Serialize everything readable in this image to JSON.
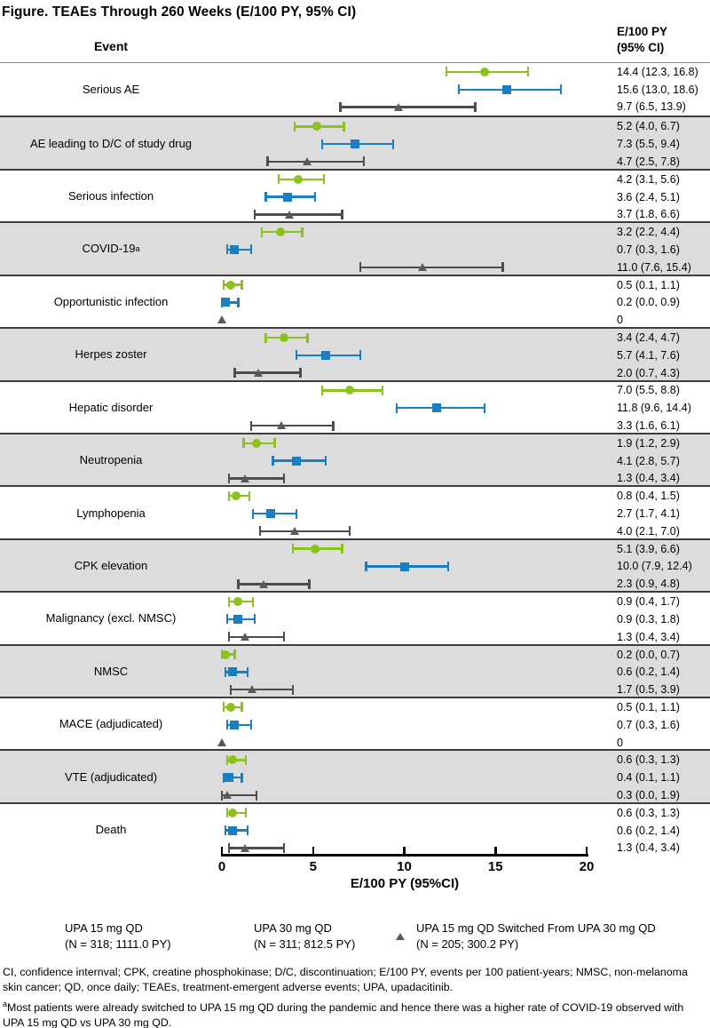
{
  "title": "Figure. TEAEs Through 260 Weeks (E/100 PY, 95% CI)",
  "header": {
    "event_col": "Event",
    "value_col_line1": "E/100 PY",
    "value_col_line2": "(95% CI)"
  },
  "colors": {
    "upa15_green": "#8CC21D",
    "upa30_blue": "#1A7FC1",
    "switched_gray_marker": "#58595B",
    "switched_gray_bar": "#4D4D4D",
    "shaded_row_bg": "#DCDCDC",
    "row_separator": "#3D3D3D",
    "axis_black": "#000000"
  },
  "chart_data": {
    "type": "forest",
    "x_axis": {
      "label": "E/100 PY (95%CI)",
      "min": 0,
      "max": 20,
      "ticks": [
        0,
        5,
        10,
        15,
        20
      ]
    },
    "series": [
      {
        "name": "UPA 15 mg QD",
        "n_label": "(N = 318; 1111.0 PY)",
        "marker": "circle",
        "color": "#8CC21D"
      },
      {
        "name": "UPA 30 mg QD",
        "n_label": "(N = 311; 812.5 PY)",
        "marker": "square",
        "color": "#1A7FC1"
      },
      {
        "name": "UPA 15 mg QD Switched From UPA 30 mg QD",
        "n_label": "(N = 205; 300.2 PY)",
        "marker": "triangle",
        "color": "#58595B"
      }
    ],
    "rows": [
      {
        "event": "Serious AE",
        "shaded": false,
        "estimates": [
          {
            "value": 14.4,
            "lo": 12.3,
            "hi": 16.8,
            "label": "14.4 (12.3, 16.8)"
          },
          {
            "value": 15.6,
            "lo": 13.0,
            "hi": 18.6,
            "label": "15.6 (13.0, 18.6)"
          },
          {
            "value": 9.7,
            "lo": 6.5,
            "hi": 13.9,
            "label": "9.7 (6.5, 13.9)"
          }
        ]
      },
      {
        "event": "AE leading to D/C of study drug",
        "shaded": true,
        "estimates": [
          {
            "value": 5.2,
            "lo": 4.0,
            "hi": 6.7,
            "label": "5.2 (4.0, 6.7)"
          },
          {
            "value": 7.3,
            "lo": 5.5,
            "hi": 9.4,
            "label": "7.3 (5.5, 9.4)"
          },
          {
            "value": 4.7,
            "lo": 2.5,
            "hi": 7.8,
            "label": "4.7 (2.5, 7.8)"
          }
        ]
      },
      {
        "event": "Serious infection",
        "shaded": false,
        "estimates": [
          {
            "value": 4.2,
            "lo": 3.1,
            "hi": 5.6,
            "label": "4.2 (3.1, 5.6)"
          },
          {
            "value": 3.6,
            "lo": 2.4,
            "hi": 5.1,
            "label": "3.6 (2.4, 5.1)"
          },
          {
            "value": 3.7,
            "lo": 1.8,
            "hi": 6.6,
            "label": "3.7 (1.8, 6.6)"
          }
        ]
      },
      {
        "event": "COVID-19",
        "label_sup": "a",
        "shaded": true,
        "estimates": [
          {
            "value": 3.2,
            "lo": 2.2,
            "hi": 4.4,
            "label": "3.2 (2.2, 4.4)"
          },
          {
            "value": 0.7,
            "lo": 0.3,
            "hi": 1.6,
            "label": "0.7 (0.3, 1.6)"
          },
          {
            "value": 11.0,
            "lo": 7.6,
            "hi": 15.4,
            "label": "11.0 (7.6, 15.4)"
          }
        ]
      },
      {
        "event": "Opportunistic infection",
        "shaded": false,
        "estimates": [
          {
            "value": 0.5,
            "lo": 0.1,
            "hi": 1.1,
            "label": "0.5 (0.1, 1.1)"
          },
          {
            "value": 0.2,
            "lo": 0.0,
            "hi": 0.9,
            "label": "0.2 (0.0, 0.9)"
          },
          {
            "value": 0,
            "lo": null,
            "hi": null,
            "label": "0"
          }
        ]
      },
      {
        "event": "Herpes zoster",
        "shaded": true,
        "estimates": [
          {
            "value": 3.4,
            "lo": 2.4,
            "hi": 4.7,
            "label": "3.4 (2.4, 4.7)"
          },
          {
            "value": 5.7,
            "lo": 4.1,
            "hi": 7.6,
            "label": "5.7 (4.1, 7.6)"
          },
          {
            "value": 2.0,
            "lo": 0.7,
            "hi": 4.3,
            "label": "2.0 (0.7, 4.3)"
          }
        ]
      },
      {
        "event": "Hepatic disorder",
        "shaded": false,
        "estimates": [
          {
            "value": 7.0,
            "lo": 5.5,
            "hi": 8.8,
            "label": "7.0 (5.5, 8.8)"
          },
          {
            "value": 11.8,
            "lo": 9.6,
            "hi": 14.4,
            "label": "11.8 (9.6, 14.4)"
          },
          {
            "value": 3.3,
            "lo": 1.6,
            "hi": 6.1,
            "label": "3.3 (1.6, 6.1)"
          }
        ]
      },
      {
        "event": "Neutropenia",
        "shaded": true,
        "estimates": [
          {
            "value": 1.9,
            "lo": 1.2,
            "hi": 2.9,
            "label": "1.9 (1.2, 2.9)"
          },
          {
            "value": 4.1,
            "lo": 2.8,
            "hi": 5.7,
            "label": "4.1 (2.8, 5.7)"
          },
          {
            "value": 1.3,
            "lo": 0.4,
            "hi": 3.4,
            "label": "1.3 (0.4, 3.4)"
          }
        ]
      },
      {
        "event": "Lymphopenia",
        "shaded": false,
        "estimates": [
          {
            "value": 0.8,
            "lo": 0.4,
            "hi": 1.5,
            "label": "0.8 (0.4, 1.5)"
          },
          {
            "value": 2.7,
            "lo": 1.7,
            "hi": 4.1,
            "label": "2.7 (1.7, 4.1)"
          },
          {
            "value": 4.0,
            "lo": 2.1,
            "hi": 7.0,
            "label": "4.0 (2.1, 7.0)"
          }
        ]
      },
      {
        "event": "CPK elevation",
        "shaded": true,
        "estimates": [
          {
            "value": 5.1,
            "lo": 3.9,
            "hi": 6.6,
            "label": "5.1 (3.9, 6.6)"
          },
          {
            "value": 10.0,
            "lo": 7.9,
            "hi": 12.4,
            "label": "10.0 (7.9, 12.4)"
          },
          {
            "value": 2.3,
            "lo": 0.9,
            "hi": 4.8,
            "label": "2.3 (0.9, 4.8)"
          }
        ]
      },
      {
        "event": "Malignancy (excl. NMSC)",
        "shaded": false,
        "estimates": [
          {
            "value": 0.9,
            "lo": 0.4,
            "hi": 1.7,
            "label": "0.9 (0.4, 1.7)"
          },
          {
            "value": 0.9,
            "lo": 0.3,
            "hi": 1.8,
            "label": "0.9 (0.3, 1.8)"
          },
          {
            "value": 1.3,
            "lo": 0.4,
            "hi": 3.4,
            "label": "1.3 (0.4, 3.4)"
          }
        ]
      },
      {
        "event": "NMSC",
        "shaded": true,
        "estimates": [
          {
            "value": 0.2,
            "lo": 0.0,
            "hi": 0.7,
            "label": "0.2 (0.0, 0.7)"
          },
          {
            "value": 0.6,
            "lo": 0.2,
            "hi": 1.4,
            "label": "0.6 (0.2, 1.4)"
          },
          {
            "value": 1.7,
            "lo": 0.5,
            "hi": 3.9,
            "label": "1.7 (0.5, 3.9)"
          }
        ]
      },
      {
        "event": "MACE (adjudicated)",
        "shaded": false,
        "estimates": [
          {
            "value": 0.5,
            "lo": 0.1,
            "hi": 1.1,
            "label": "0.5 (0.1, 1.1)"
          },
          {
            "value": 0.7,
            "lo": 0.3,
            "hi": 1.6,
            "label": "0.7 (0.3, 1.6)"
          },
          {
            "value": 0,
            "lo": null,
            "hi": null,
            "label": "0"
          }
        ]
      },
      {
        "event": "VTE (adjudicated)",
        "shaded": true,
        "estimates": [
          {
            "value": 0.6,
            "lo": 0.3,
            "hi": 1.3,
            "label": "0.6 (0.3, 1.3)"
          },
          {
            "value": 0.4,
            "lo": 0.1,
            "hi": 1.1,
            "label": "0.4 (0.1, 1.1)"
          },
          {
            "value": 0.3,
            "lo": 0.0,
            "hi": 1.9,
            "label": "0.3 (0.0, 1.9)"
          }
        ]
      },
      {
        "event": "Death",
        "shaded": false,
        "estimates": [
          {
            "value": 0.6,
            "lo": 0.3,
            "hi": 1.3,
            "label": "0.6 (0.3, 1.3)"
          },
          {
            "value": 0.6,
            "lo": 0.2,
            "hi": 1.4,
            "label": "0.6 (0.2, 1.4)"
          },
          {
            "value": 1.3,
            "lo": 0.4,
            "hi": 3.4,
            "label": "1.3 (0.4, 3.4)"
          }
        ]
      }
    ]
  },
  "footnotes": {
    "abbreviations": "CI, confidence internval; CPK, creatine phosphokinase; D/C, discontinuation; E/100 PY, events per 100 patient-years; NMSC, non-melanoma skin cancer; QD, once daily; TEAEs, treatment-emergent adverse events; UPA, upadacitinib.",
    "note_a_marker": "a",
    "note_a_text": "Most patients were already switched to UPA 15 mg QD during the pandemic and hence there was a higher rate of COVID-19 observed with UPA 15 mg QD vs UPA 30 mg QD."
  }
}
